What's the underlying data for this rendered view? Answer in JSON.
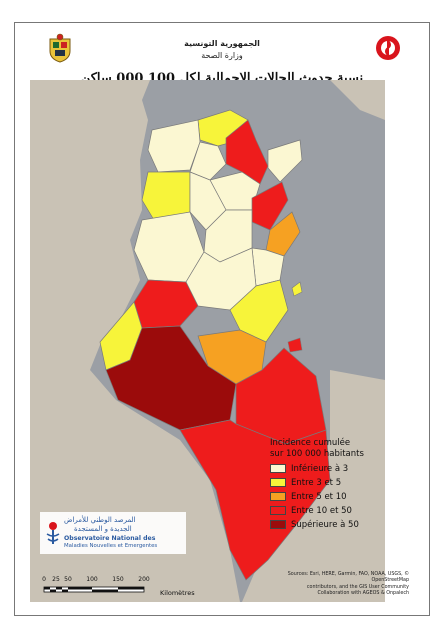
{
  "header": {
    "gov_line_1": "الجمهورية التونسية",
    "gov_line_2": "وزارة الصحة",
    "title": "نسبة حدوث الحالات الإجمالية لكل 100 000 ساكن"
  },
  "legend": {
    "title_line_1": "Incidence cumulée",
    "title_line_2": "sur 100 000 habitants",
    "classes": [
      {
        "label": "Inférieure à 3",
        "color": "#fbf7d2"
      },
      {
        "label": "Entre 3 et 5",
        "color": "#f7f43a"
      },
      {
        "label": "Entre 5 et 10",
        "color": "#f6a122"
      },
      {
        "label": "Entre 10 et 50",
        "color": "#ee1c1c"
      },
      {
        "label": "Supérieure à 50",
        "color": "#9b0b0b"
      }
    ]
  },
  "observatory": {
    "arabic_line_1": "المرصد الوطني للأمراض",
    "arabic_line_2": "الجديدة و المستجدة",
    "french_line_1": "Observatoire National des",
    "french_line_2": "Maladies Nouvelles et Emergentes"
  },
  "scale_bar": {
    "ticks": [
      "0",
      "25",
      "50",
      "100",
      "150",
      "200"
    ],
    "unit": "Kilomètres"
  },
  "credits": {
    "line_1": "Sources: Esri, HERE, Garmin, FAO, NOAA, USGS, © OpenStreetMap",
    "line_2": "contributors, and the GIS User Community",
    "line_3": "Collaboration with AGEOS & Onpalech"
  },
  "map": {
    "land_color": "#c9c2b5",
    "sea_color": "#9b9fa5",
    "border_color": "#7a7a7a"
  }
}
